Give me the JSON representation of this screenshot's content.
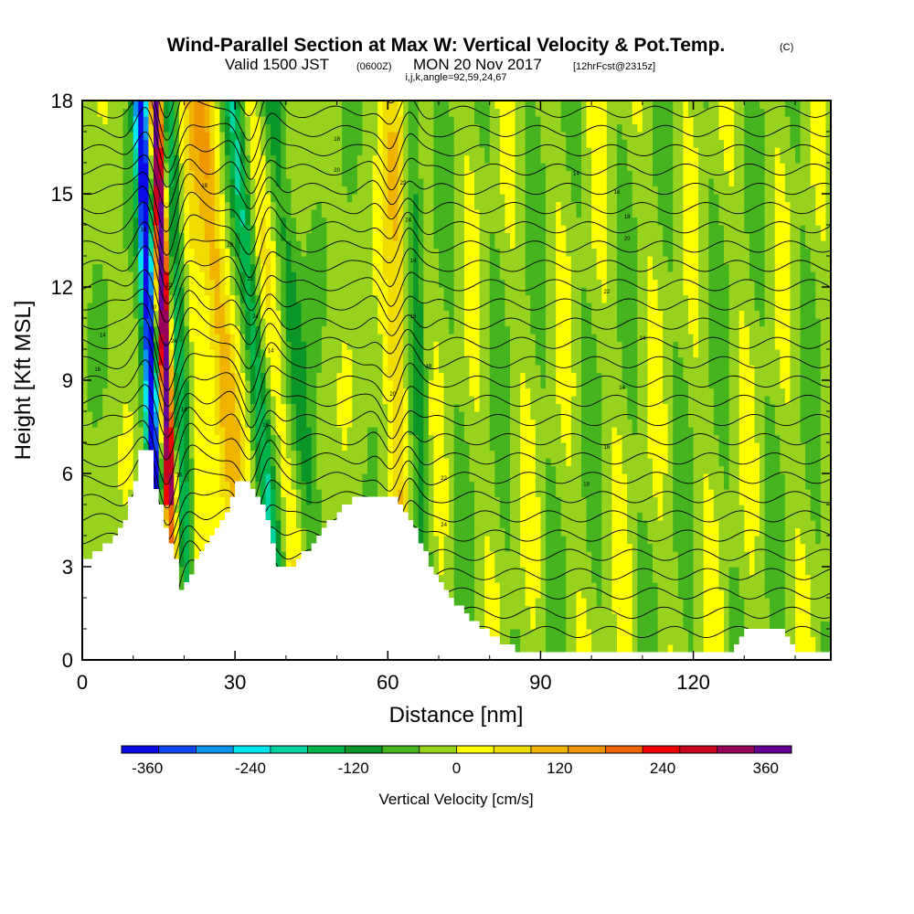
{
  "chart_data": {
    "type": "heatmap",
    "title": "Wind-Parallel Section at Max W: Vertical Velocity & Pot.Temp.",
    "title_mark": "(C)",
    "subtitle_main": "Valid 1500 JST",
    "subtitle_utc": "(0600Z)",
    "subtitle_date": "MON 20 Nov 2017",
    "subtitle_fcst": "[12hrFcst@2315z]",
    "subtitle_index": "i,j,k,angle=92,59,24,67",
    "xlabel": "Distance [nm]",
    "ylabel": "Height [Kft MSL]",
    "xlim": [
      0,
      147
    ],
    "ylim": [
      0,
      18
    ],
    "xticks": [
      0,
      30,
      60,
      90,
      120
    ],
    "yticks": [
      0,
      3,
      6,
      9,
      12,
      15,
      18
    ],
    "colorbar": {
      "label": "Vertical Velocity [cm/s]",
      "ticks": [
        -360,
        -240,
        -120,
        0,
        120,
        240,
        360
      ],
      "range": [
        -390,
        390
      ],
      "colors": [
        "#0a0ae6",
        "#0a46f0",
        "#0a96f0",
        "#00e6f0",
        "#00d2a0",
        "#00b44b",
        "#0a9628",
        "#46b41e",
        "#96d21e",
        "#ffff00",
        "#f0dc00",
        "#f0b400",
        "#f09600",
        "#f06400",
        "#f00000",
        "#c8001e",
        "#96005a",
        "#640096"
      ]
    },
    "terrain_height_kft": [
      [
        0,
        3.2
      ],
      [
        2,
        3.5
      ],
      [
        4,
        3.7
      ],
      [
        6,
        4.0
      ],
      [
        8,
        4.6
      ],
      [
        10,
        5.7
      ],
      [
        11,
        6.7
      ],
      [
        13,
        6.7
      ],
      [
        14,
        5.6
      ],
      [
        16,
        4.2
      ],
      [
        18,
        3.2
      ],
      [
        19,
        2.3
      ],
      [
        21,
        2.8
      ],
      [
        23,
        3.6
      ],
      [
        26,
        4.2
      ],
      [
        28,
        4.8
      ],
      [
        30,
        5.8
      ],
      [
        32,
        5.8
      ],
      [
        34,
        5.2
      ],
      [
        36,
        4.6
      ],
      [
        38,
        3.0
      ],
      [
        41,
        3.0
      ],
      [
        44,
        3.6
      ],
      [
        47,
        4.2
      ],
      [
        50,
        4.8
      ],
      [
        53,
        5.2
      ],
      [
        56,
        5.2
      ],
      [
        58,
        5.2
      ],
      [
        61,
        5.2
      ],
      [
        63,
        4.8
      ],
      [
        65,
        4.2
      ],
      [
        67,
        3.4
      ],
      [
        70,
        2.5
      ],
      [
        73,
        1.8
      ],
      [
        76,
        1.3
      ],
      [
        79,
        0.9
      ],
      [
        82,
        0.6
      ],
      [
        85,
        0.3
      ],
      [
        100,
        0.3
      ],
      [
        110,
        0.3
      ],
      [
        127,
        0.3
      ],
      [
        130,
        0.9
      ],
      [
        137,
        0.9
      ],
      [
        140,
        0.3
      ],
      [
        147,
        0.3
      ]
    ],
    "theta_labels": [
      "14",
      "16",
      "18",
      "20",
      "22",
      "24"
    ]
  }
}
